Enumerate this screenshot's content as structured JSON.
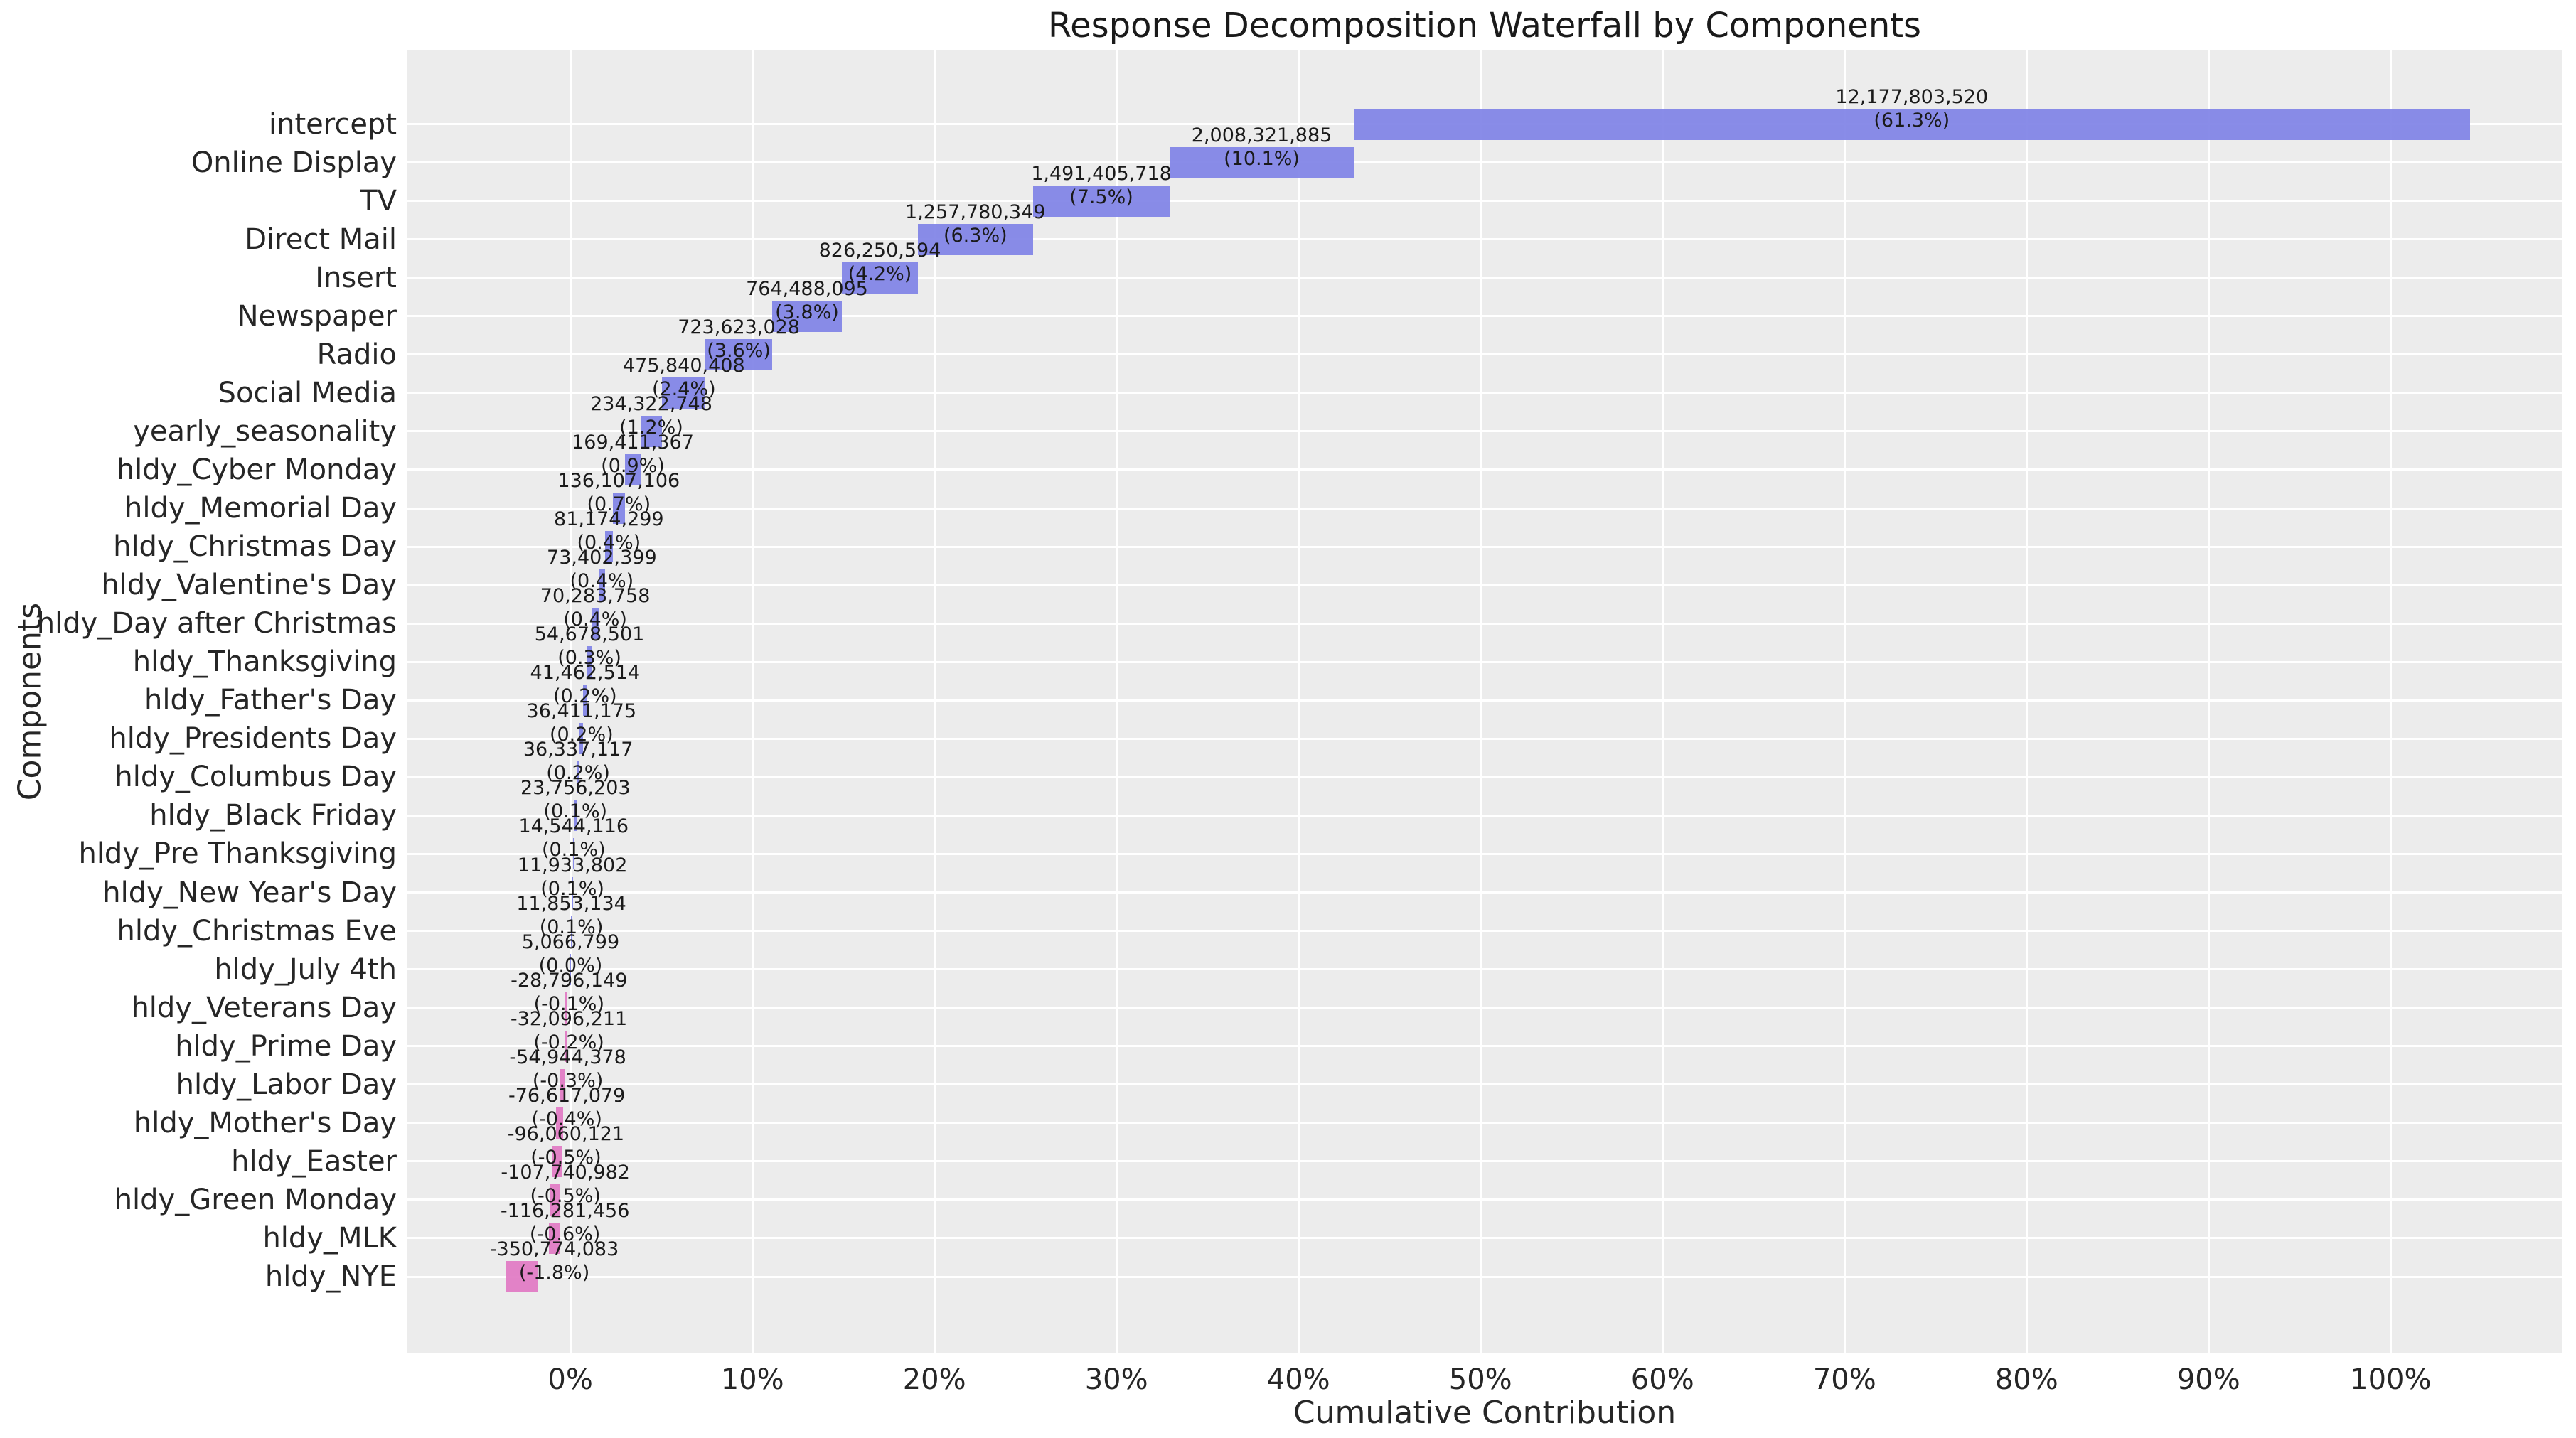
{
  "title": "Response Decomposition Waterfall by Components",
  "colors": {
    "positive_bar": "#7f82e6",
    "negative_bar": "#e178c3",
    "plot_background": "#ececec",
    "gridline": "#ffffff",
    "text": "#262626",
    "label_text": "#1a1a1a"
  },
  "chart_data": {
    "type": "bar",
    "subtype": "horizontal-waterfall",
    "title": "Response Decomposition Waterfall by Components",
    "xlabel": "Cumulative Contribution",
    "ylabel": "Components",
    "x_ticks": [
      "0%",
      "10%",
      "20%",
      "30%",
      "40%",
      "50%",
      "60%",
      "70%",
      "80%",
      "90%",
      "100%"
    ],
    "x_tick_values": [
      0,
      10,
      20,
      30,
      40,
      50,
      60,
      70,
      80,
      90,
      100
    ],
    "xlim_pct": [
      -8.95,
      109.4
    ],
    "grid": true,
    "legend": false,
    "components": [
      {
        "name": "intercept",
        "value": 12177803520,
        "value_label": "12,177,803,520",
        "pct_label": "(61.3%)"
      },
      {
        "name": "Online Display",
        "value": 2008321885,
        "value_label": "2,008,321,885",
        "pct_label": "(10.1%)"
      },
      {
        "name": "TV",
        "value": 1491405718,
        "value_label": "1,491,405,718",
        "pct_label": "(7.5%)"
      },
      {
        "name": "Direct Mail",
        "value": 1257780349,
        "value_label": "1,257,780,349",
        "pct_label": "(6.3%)"
      },
      {
        "name": "Insert",
        "value": 826250594,
        "value_label": "826,250,594",
        "pct_label": "(4.2%)"
      },
      {
        "name": "Newspaper",
        "value": 764488095,
        "value_label": "764,488,095",
        "pct_label": "(3.8%)"
      },
      {
        "name": "Radio",
        "value": 723623028,
        "value_label": "723,623,028",
        "pct_label": "(3.6%)"
      },
      {
        "name": "Social Media",
        "value": 475840408,
        "value_label": "475,840,408",
        "pct_label": "(2.4%)"
      },
      {
        "name": "yearly_seasonality",
        "value": 234322748,
        "value_label": "234,322,748",
        "pct_label": "(1.2%)"
      },
      {
        "name": "hldy_Cyber Monday",
        "value": 169411367,
        "value_label": "169,411,367",
        "pct_label": "(0.9%)"
      },
      {
        "name": "hldy_Memorial Day",
        "value": 136107106,
        "value_label": "136,107,106",
        "pct_label": "(0.7%)"
      },
      {
        "name": "hldy_Christmas Day",
        "value": 81174299,
        "value_label": "81,174,299",
        "pct_label": "(0.4%)"
      },
      {
        "name": "hldy_Valentine's Day",
        "value": 73402399,
        "value_label": "73,402,399",
        "pct_label": "(0.4%)"
      },
      {
        "name": "hldy_Day after Christmas",
        "value": 70283758,
        "value_label": "70,283,758",
        "pct_label": "(0.4%)"
      },
      {
        "name": "hldy_Thanksgiving",
        "value": 54678501,
        "value_label": "54,678,501",
        "pct_label": "(0.3%)"
      },
      {
        "name": "hldy_Father's Day",
        "value": 41462514,
        "value_label": "41,462,514",
        "pct_label": "(0.2%)"
      },
      {
        "name": "hldy_Presidents Day",
        "value": 36411175,
        "value_label": "36,411,175",
        "pct_label": "(0.2%)"
      },
      {
        "name": "hldy_Columbus Day",
        "value": 36337117,
        "value_label": "36,337,117",
        "pct_label": "(0.2%)"
      },
      {
        "name": "hldy_Black Friday",
        "value": 23756203,
        "value_label": "23,756,203",
        "pct_label": "(0.1%)"
      },
      {
        "name": "hldy_Pre Thanksgiving",
        "value": 14544116,
        "value_label": "14,544,116",
        "pct_label": "(0.1%)"
      },
      {
        "name": "hldy_New Year's Day",
        "value": 11933802,
        "value_label": "11,933,802",
        "pct_label": "(0.1%)"
      },
      {
        "name": "hldy_Christmas Eve",
        "value": 11853134,
        "value_label": "11,853,134",
        "pct_label": "(0.1%)"
      },
      {
        "name": "hldy_July 4th",
        "value": 5066799,
        "value_label": "5,066,799",
        "pct_label": "(0.0%)"
      },
      {
        "name": "hldy_Veterans Day",
        "value": -28796149,
        "value_label": "-28,796,149",
        "pct_label": "(-0.1%)"
      },
      {
        "name": "hldy_Prime Day",
        "value": -32096211,
        "value_label": "-32,096,211",
        "pct_label": "(-0.2%)"
      },
      {
        "name": "hldy_Labor Day",
        "value": -54944378,
        "value_label": "-54,944,378",
        "pct_label": "(-0.3%)"
      },
      {
        "name": "hldy_Mother's Day",
        "value": -76617079,
        "value_label": "-76,617,079",
        "pct_label": "(-0.4%)"
      },
      {
        "name": "hldy_Easter",
        "value": -96060121,
        "value_label": "-96,060,121",
        "pct_label": "(-0.5%)"
      },
      {
        "name": "hldy_Green Monday",
        "value": -107740982,
        "value_label": "-107,740,982",
        "pct_label": "(-0.5%)"
      },
      {
        "name": "hldy_MLK",
        "value": -116281456,
        "value_label": "-116,281,456",
        "pct_label": "(-0.6%)"
      },
      {
        "name": "hldy_NYE",
        "value": -350774083,
        "value_label": "-350,774,083",
        "pct_label": "(-1.8%)"
      }
    ]
  }
}
